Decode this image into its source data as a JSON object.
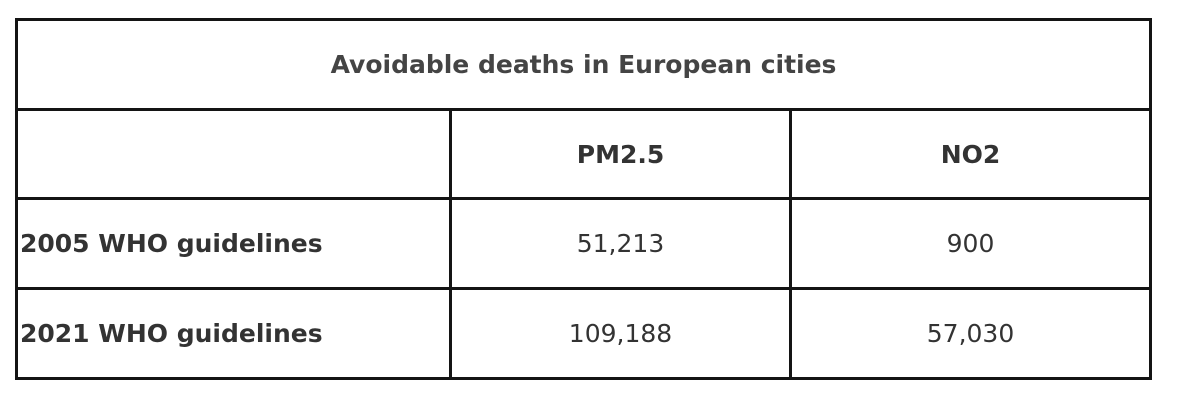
{
  "table": {
    "title": "Avoidable deaths in European cities",
    "columns": [
      "",
      "PM2.5",
      "NO2"
    ],
    "rows": [
      {
        "label": "2005 WHO guidelines",
        "pm25": "51,213",
        "no2": "900"
      },
      {
        "label": "2021 WHO guidelines",
        "pm25": "109,188",
        "no2": "57,030"
      }
    ]
  }
}
